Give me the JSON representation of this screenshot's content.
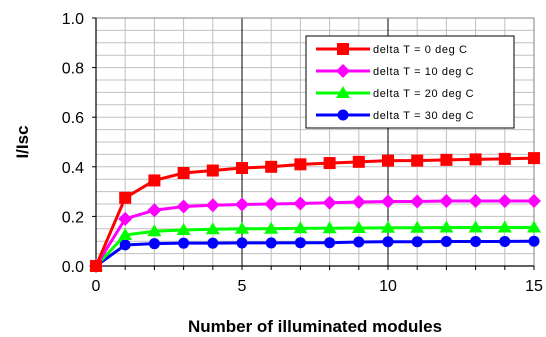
{
  "chart_data": {
    "type": "line",
    "title": "",
    "xlabel": "Number of illuminated modules",
    "ylabel": "I/Isc",
    "xlim": [
      0,
      15
    ],
    "ylim": [
      0.0,
      1.0
    ],
    "x_ticks": [
      "0",
      "5",
      "10",
      "15"
    ],
    "y_ticks": [
      "0.0",
      "0.2",
      "0.4",
      "0.6",
      "0.8",
      "1.0"
    ],
    "grid": true,
    "legend_position": "top-right",
    "x": [
      0,
      1,
      2,
      3,
      4,
      5,
      6,
      7,
      8,
      9,
      10,
      11,
      12,
      13,
      14,
      15
    ],
    "series": [
      {
        "name": "delta T = 0 deg C",
        "color": "#ff0000",
        "marker": "square",
        "values": [
          0.0,
          0.275,
          0.345,
          0.375,
          0.385,
          0.395,
          0.4,
          0.41,
          0.415,
          0.42,
          0.425,
          0.425,
          0.428,
          0.43,
          0.432,
          0.435
        ]
      },
      {
        "name": "delta T = 10 deg C",
        "color": "#ff00ff",
        "marker": "diamond",
        "values": [
          0.0,
          0.19,
          0.225,
          0.24,
          0.245,
          0.248,
          0.25,
          0.252,
          0.255,
          0.258,
          0.26,
          0.26,
          0.262,
          0.262,
          0.262,
          0.262
        ]
      },
      {
        "name": "delta T = 20 deg C",
        "color": "#00ff00",
        "marker": "triangle",
        "values": [
          0.0,
          0.125,
          0.14,
          0.145,
          0.148,
          0.15,
          0.15,
          0.152,
          0.152,
          0.153,
          0.154,
          0.154,
          0.155,
          0.155,
          0.155,
          0.155
        ]
      },
      {
        "name": "delta T = 30 deg C",
        "color": "#0000ff",
        "marker": "circle",
        "values": [
          0.0,
          0.085,
          0.09,
          0.092,
          0.092,
          0.093,
          0.093,
          0.094,
          0.094,
          0.097,
          0.098,
          0.098,
          0.099,
          0.099,
          0.099,
          0.1
        ]
      }
    ]
  }
}
